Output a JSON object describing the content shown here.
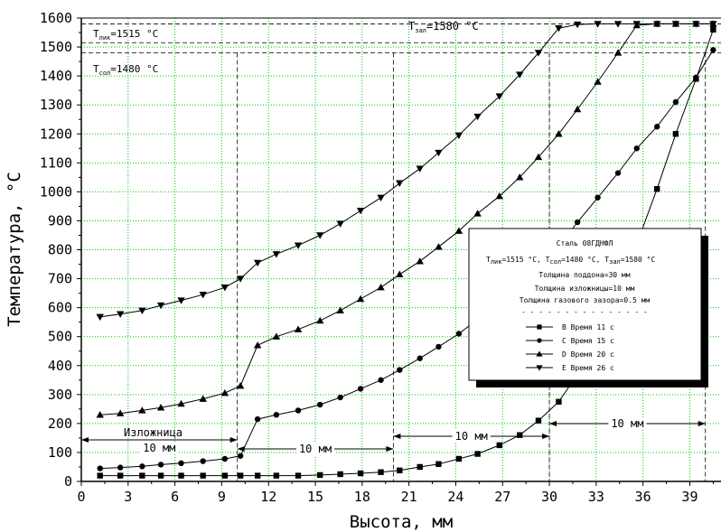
{
  "chart_data": {
    "type": "line",
    "xlabel": "Высота, мм",
    "ylabel": "Температура, °C",
    "xlim": [
      0,
      41
    ],
    "ylim": [
      0,
      1600
    ],
    "xticks": [
      "0",
      "3",
      "6",
      "9",
      "12",
      "15",
      "18",
      "21",
      "24",
      "27",
      "30",
      "33",
      "36",
      "39"
    ],
    "yticks": [
      "0",
      "100",
      "200",
      "300",
      "400",
      "500",
      "600",
      "700",
      "800",
      "900",
      "1000",
      "1100",
      "1200",
      "1300",
      "1400",
      "1500",
      "1600"
    ],
    "grid": true,
    "legend_position": "right",
    "annotations": {
      "t_liq": "T",
      "t_liq_sub": "лик",
      "t_liq_val": "=1515 °C",
      "t_sol": "T",
      "t_sol_sub": "сол",
      "t_sol_val": "=1480 °C",
      "t_pour": "T",
      "t_pour_sub": "зал",
      "t_pour_val": "=1580 °C",
      "mold": "Изложница",
      "dim_10": "10 мм"
    },
    "reference_lines": [
      1515,
      1480,
      1580
    ],
    "vertical_lines": [
      10,
      20,
      30,
      40
    ],
    "legend": {
      "title": "Сталь 08ГДНФЛ",
      "params": "T",
      "params_liq_sub": "лик",
      "params_liq_val": "=1515 °C, T",
      "params_sol_sub": "сол",
      "params_sol_val": "=1480 °C, T",
      "params_pour_sub": "зал",
      "params_pour_val": "=1580 °C",
      "line3": "Толщина поддона=30 мм",
      "line4": "Толщина изложницы=10 мм",
      "line5": "Толщина газового зазора=0.5 мм",
      "separator": "- - - - - - - - - - - - - - -"
    },
    "series": [
      {
        "name": "B Время 11 с",
        "marker": "square",
        "x": [
          1.2,
          2.5,
          3.9,
          5.1,
          6.4,
          7.8,
          9.2,
          10.2,
          11.3,
          12.5,
          13.9,
          15.3,
          16.6,
          17.9,
          19.2,
          20.4,
          21.7,
          22.9,
          24.2,
          25.4,
          26.8,
          28.1,
          29.3,
          30.6,
          31.8,
          33.1,
          34.4,
          35.6,
          36.9,
          38.1,
          39.4,
          40.5
        ],
        "y": [
          20,
          20,
          20,
          20,
          20,
          20,
          20,
          20,
          20,
          20,
          20,
          22,
          25,
          28,
          32,
          38,
          50,
          60,
          78,
          95,
          125,
          160,
          210,
          275,
          370,
          500,
          660,
          820,
          1010,
          1200,
          1390,
          1560
        ]
      },
      {
        "name": "C Время 15 с",
        "marker": "circle",
        "x": [
          1.2,
          2.5,
          3.9,
          5.1,
          6.4,
          7.8,
          9.2,
          10.2,
          11.3,
          12.5,
          13.9,
          15.3,
          16.6,
          17.9,
          19.2,
          20.4,
          21.7,
          22.9,
          24.2,
          25.4,
          26.8,
          28.1,
          29.3,
          30.6,
          31.8,
          33.1,
          34.4,
          35.6,
          36.9,
          38.1,
          39.4,
          40.5
        ],
        "y": [
          45,
          48,
          52,
          58,
          63,
          70,
          78,
          88,
          215,
          230,
          245,
          265,
          290,
          320,
          350,
          385,
          425,
          465,
          510,
          560,
          615,
          675,
          740,
          810,
          895,
          980,
          1065,
          1150,
          1225,
          1310,
          1395,
          1490
        ]
      },
      {
        "name": "D Время 20 с",
        "marker": "triangle-up",
        "x": [
          1.2,
          2.5,
          3.9,
          5.1,
          6.4,
          7.8,
          9.2,
          10.2,
          11.3,
          12.5,
          13.9,
          15.3,
          16.6,
          17.9,
          19.2,
          20.4,
          21.7,
          22.9,
          24.2,
          25.4,
          26.8,
          28.1,
          29.3,
          30.6,
          31.8,
          33.1,
          34.4,
          35.6,
          36.9,
          38.1,
          39.4,
          40.5
        ],
        "y": [
          230,
          235,
          245,
          255,
          268,
          285,
          305,
          330,
          470,
          500,
          525,
          555,
          590,
          630,
          670,
          715,
          760,
          810,
          865,
          925,
          985,
          1050,
          1120,
          1200,
          1285,
          1380,
          1480,
          1575,
          1580,
          1580,
          1580,
          1580
        ]
      },
      {
        "name": "E Время 26 с",
        "marker": "triangle-down",
        "x": [
          1.2,
          2.5,
          3.9,
          5.1,
          6.4,
          7.8,
          9.2,
          10.2,
          11.3,
          12.5,
          13.9,
          15.3,
          16.6,
          17.9,
          19.2,
          20.4,
          21.7,
          22.9,
          24.2,
          25.4,
          26.8,
          28.1,
          29.3,
          30.6,
          31.8,
          33.1,
          34.4,
          35.6,
          36.9,
          38.1,
          39.4,
          40.5
        ],
        "y": [
          568,
          578,
          590,
          608,
          625,
          645,
          670,
          700,
          755,
          785,
          815,
          850,
          890,
          935,
          980,
          1030,
          1080,
          1135,
          1195,
          1260,
          1330,
          1405,
          1480,
          1565,
          1578,
          1580,
          1580,
          1580,
          1580,
          1580,
          1580,
          1580
        ]
      }
    ]
  }
}
